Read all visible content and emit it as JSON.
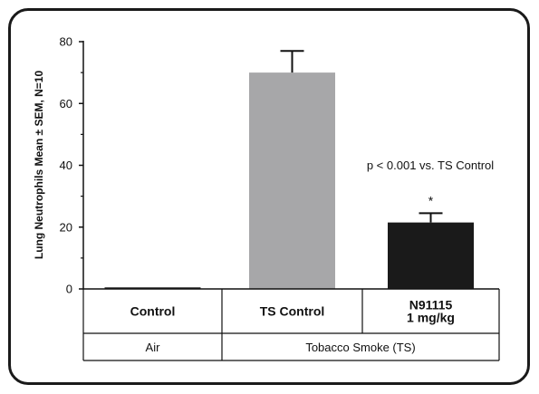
{
  "chart_data": {
    "type": "bar",
    "categories": [
      "Control",
      "TS Control",
      "N91115\n1 mg/kg"
    ],
    "values": [
      0.5,
      70,
      21.5
    ],
    "errors": [
      0,
      7,
      3
    ],
    "colors": [
      "#1a1a1a",
      "#a7a7a9",
      "#1a1a1a"
    ],
    "groups": [
      {
        "label": "Air",
        "categories": [
          "Control"
        ]
      },
      {
        "label": "Tobacco Smoke (TS)",
        "categories": [
          "TS Control",
          "N91115\n1 mg/kg"
        ]
      }
    ],
    "ylabel": "Lung Neutrophils Mean ± SEM, N=10",
    "ylim": [
      0,
      80
    ],
    "yticks": [
      0,
      20,
      40,
      60,
      80
    ],
    "annotations": [
      {
        "text": "p < 0.001 vs. TS Control"
      },
      {
        "text": "*",
        "category": "N91115\n1 mg/kg"
      }
    ],
    "grid": false
  }
}
